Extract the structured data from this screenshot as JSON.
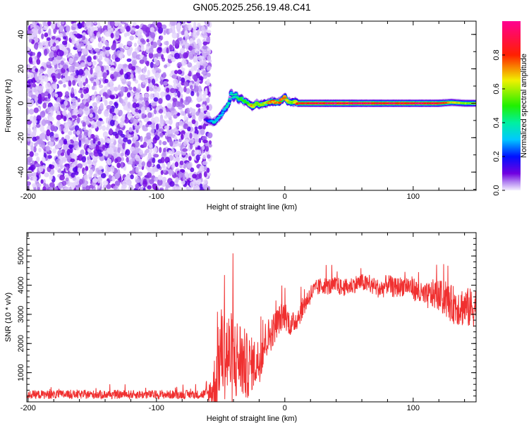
{
  "chart_data": [
    {
      "type": "heatmap",
      "title": "GN05.2025.256.19.48.C41",
      "xlabel": "Height of straight line (km)",
      "ylabel": "Frequency (Hz)",
      "xlim": [
        -201,
        149
      ],
      "ylim": [
        -50.6,
        47.7
      ],
      "xticks": [
        -200,
        -100,
        0,
        100
      ],
      "xtick_labels": [
        "-200",
        "-100",
        "0",
        "100"
      ],
      "yticks": [
        -40,
        -20,
        0,
        20,
        40
      ],
      "ytick_labels": [
        "-40",
        "-20",
        "0",
        "20",
        "40"
      ],
      "noise_region": {
        "x_range": [
          -201,
          -58
        ],
        "amplitude_range": [
          0.0,
          0.12
        ]
      },
      "ridge": {
        "height_km": [
          -62,
          -58,
          -55,
          -52,
          -50,
          -47,
          -45,
          -43,
          -42,
          -40,
          -38,
          -36,
          -34,
          -32,
          -30,
          -27,
          -25,
          -22,
          -20,
          -15,
          -10,
          -5,
          -2,
          0,
          2,
          5,
          8,
          10,
          20,
          40,
          60,
          80,
          100,
          120,
          130,
          140,
          149
        ],
        "frequency_hz": [
          -9,
          -10.5,
          -11,
          -9,
          -7,
          -4,
          -2,
          1,
          7,
          3,
          5,
          2,
          3,
          1,
          1,
          -1,
          -2,
          0,
          -1,
          0,
          1,
          0.5,
          2,
          4,
          1,
          0.5,
          1,
          0,
          0,
          0,
          0,
          0,
          0,
          0,
          0.5,
          0,
          0
        ],
        "amplitude": [
          0.12,
          0.25,
          0.35,
          0.3,
          0.35,
          0.3,
          0.4,
          0.35,
          0.35,
          0.4,
          0.4,
          0.45,
          0.5,
          0.55,
          0.5,
          0.6,
          0.7,
          0.6,
          0.55,
          0.6,
          0.75,
          0.7,
          0.8,
          0.75,
          0.7,
          0.6,
          0.65,
          0.85,
          0.92,
          0.95,
          0.93,
          0.9,
          0.92,
          0.9,
          0.7,
          0.6,
          0.6
        ]
      },
      "colorbar": {
        "label": "Normalized spectral amplitude",
        "ticks": [
          0.0,
          0.2,
          0.4,
          0.6,
          0.8
        ],
        "tick_labels": [
          "0.0",
          "0.2",
          "0.4",
          "0.6",
          "0.8"
        ],
        "range": [
          0,
          1
        ]
      }
    },
    {
      "type": "line",
      "title": "",
      "xlabel": "Height of straight line (km)",
      "ylabel": "SNR (10 * v/v)",
      "xlim": [
        -201,
        149
      ],
      "ylim": [
        0,
        5800
      ],
      "xticks": [
        -200,
        -100,
        0,
        100
      ],
      "xtick_labels": [
        "-200",
        "-100",
        "0",
        "100"
      ],
      "yticks": [
        1000,
        2000,
        3000,
        4000,
        5000
      ],
      "ytick_labels": [
        "1000",
        "2000",
        "3000",
        "4000",
        "5000"
      ],
      "color": "#f03030",
      "series": [
        {
          "name": "SNR",
          "x_start": -200,
          "x_step": 5,
          "values": [
            250,
            250,
            250,
            250,
            250,
            250,
            250,
            250,
            250,
            250,
            250,
            250,
            250,
            250,
            250,
            250,
            250,
            250,
            250,
            250,
            250,
            250,
            250,
            250,
            250,
            250,
            250,
            250,
            280,
            400,
            1800,
            1600,
            1400,
            1500,
            1200,
            1300,
            1400,
            2100,
            2400,
            2800,
            3000,
            2600,
            2900,
            3300,
            3700,
            3900,
            4000,
            3950,
            4000,
            3900,
            3950,
            4050,
            4100,
            4000,
            3950,
            3850,
            4050,
            3900,
            3950,
            4000,
            3900,
            3700,
            3600,
            3700,
            3650,
            3500,
            3350,
            3300,
            3250,
            3200,
            3300
          ],
          "noise_amplitude": [
            150,
            150,
            150,
            150,
            150,
            150,
            150,
            150,
            150,
            150,
            150,
            150,
            150,
            150,
            150,
            150,
            150,
            150,
            150,
            150,
            150,
            150,
            150,
            150,
            150,
            150,
            150,
            150,
            200,
            1200,
            1500,
            1700,
            1600,
            1400,
            1200,
            900,
            800,
            700,
            600,
            500,
            500,
            400,
            400,
            350,
            350,
            300,
            300,
            300,
            300,
            300,
            300,
            300,
            300,
            300,
            300,
            350,
            350,
            350,
            350,
            350,
            400,
            400,
            450,
            500,
            550,
            600,
            650,
            700,
            700,
            700,
            700
          ]
        }
      ]
    }
  ]
}
